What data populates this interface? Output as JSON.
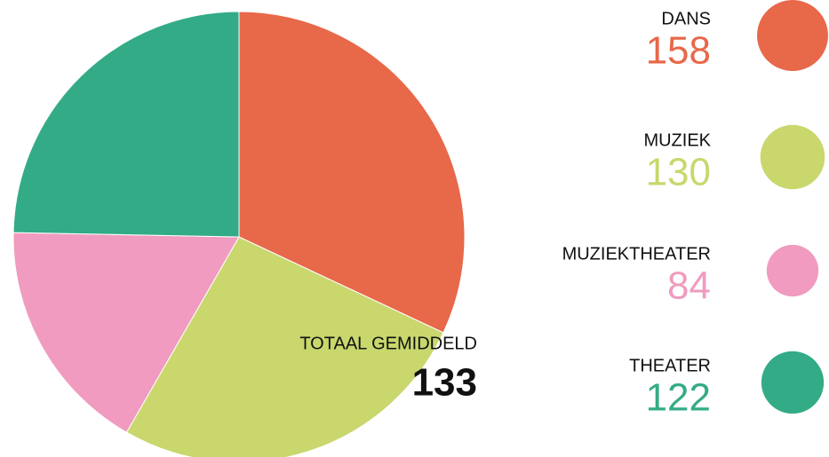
{
  "chart_data": {
    "type": "pie",
    "categories": [
      "DANS",
      "MUZIEK",
      "MUZIEKTHEATER",
      "THEATER"
    ],
    "values": [
      158,
      130,
      84,
      122
    ],
    "colors": [
      "#e8684a",
      "#c9d76d",
      "#f09bbf",
      "#33ab87"
    ],
    "center_label": {
      "title": "TOTAAL GEMIDDELD",
      "value": 133
    }
  }
}
